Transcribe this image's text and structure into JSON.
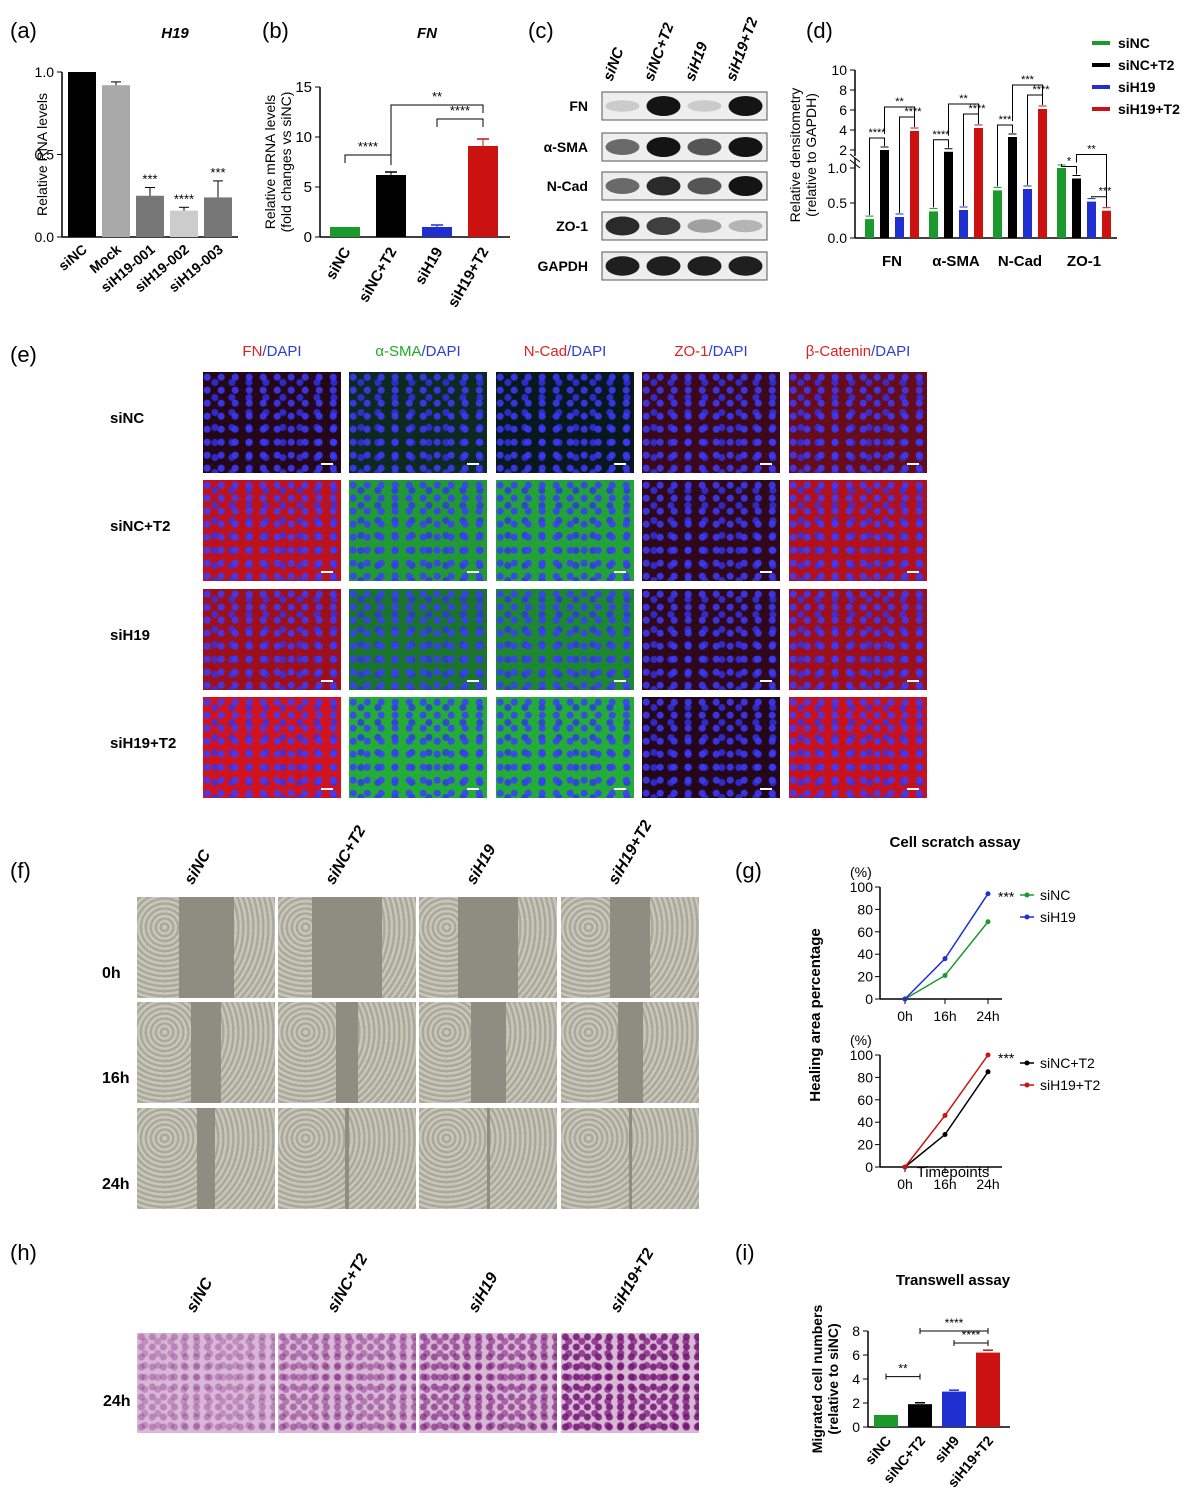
{
  "panel_letters": [
    "(a)",
    "(b)",
    "(c)",
    "(d)",
    "(e)",
    "(f)",
    "(g)",
    "(h)",
    "(i)"
  ],
  "colors": {
    "siNC": "#1a9a2a",
    "siNC_T2": "#000000",
    "siH19": "#1f2fd0",
    "siH19_T2": "#cc1111",
    "mock": "#a9a9a9",
    "grey": "#777777"
  },
  "chart_data": [
    {
      "id": "a",
      "type": "bar",
      "title": "H19",
      "xlabel": "",
      "ylabel": "Relative RNA levels",
      "ylim": [
        0,
        1.0
      ],
      "yticks": [
        "0.0",
        "0.5",
        "1.0"
      ],
      "categories": [
        "siNC",
        "Mock",
        "siH19-001",
        "siH19-002",
        "siH19-003"
      ],
      "values": [
        1.0,
        0.92,
        0.25,
        0.16,
        0.24
      ],
      "errors": [
        0,
        0.02,
        0.05,
        0.02,
        0.1
      ],
      "annotations": [
        "",
        "",
        "***",
        "****",
        "***"
      ]
    },
    {
      "id": "b",
      "type": "bar",
      "title": "FN",
      "xlabel": "",
      "ylabel": "Relative mRNA levels (fold changes vs siNC)",
      "ylabel_lines": [
        "Relative mRNA levels",
        "(fold changes vs siNC)"
      ],
      "ylim": [
        0,
        15
      ],
      "yticks": [
        "0",
        "5",
        "10",
        "15"
      ],
      "categories": [
        "siNC",
        "siNC+T2",
        "siH19",
        "siH19+T2"
      ],
      "values": [
        1.0,
        6.2,
        1.0,
        9.1
      ],
      "errors": [
        0,
        0.3,
        0.2,
        0.7
      ],
      "brackets": [
        {
          "from": 0,
          "to": 1,
          "label": "****"
        },
        {
          "from": 2,
          "to": 3,
          "label": "****"
        },
        {
          "from": 1,
          "to": 3,
          "label": "**"
        }
      ]
    },
    {
      "id": "c",
      "type": "table",
      "title": "",
      "columns": [
        "siNC",
        "siNC+T2",
        "siH19",
        "siH19+T2"
      ],
      "rows": [
        "FN",
        "α-SMA",
        "N-Cad",
        "ZO-1",
        "GAPDH"
      ],
      "band_intensity": [
        [
          0.15,
          1.0,
          0.15,
          1.0
        ],
        [
          0.6,
          1.0,
          0.7,
          1.0
        ],
        [
          0.6,
          0.9,
          0.7,
          1.0
        ],
        [
          0.9,
          0.8,
          0.35,
          0.25
        ],
        [
          0.95,
          0.95,
          0.95,
          0.95
        ]
      ]
    },
    {
      "id": "d",
      "type": "bar",
      "title": "",
      "xlabel": "",
      "ylabel": "Relative densitometry (relative to GAPDH)",
      "ylabel_lines": [
        "Relative densitometry",
        "(relative to GAPDH)"
      ],
      "ylim": [
        0,
        10
      ],
      "yticks_low": [
        "0.0",
        "0.5",
        "1.0"
      ],
      "yticks_high": [
        "2",
        "4",
        "6",
        "8",
        "10"
      ],
      "categories": [
        "FN",
        "α-SMA",
        "N-Cad",
        "ZO-1"
      ],
      "legend": "top-right",
      "series": [
        {
          "name": "siNC",
          "values": [
            0.27,
            0.38,
            0.68,
            1.0
          ]
        },
        {
          "name": "siNC+T2",
          "values": [
            2.0,
            1.8,
            3.3,
            0.85
          ]
        },
        {
          "name": "siH19",
          "values": [
            0.3,
            0.4,
            0.7,
            0.52
          ]
        },
        {
          "name": "siH19+T2",
          "values": [
            3.9,
            4.2,
            6.1,
            0.39
          ]
        }
      ],
      "annotations": [
        [
          "****",
          "**",
          "****"
        ],
        [
          "****",
          "**",
          "****"
        ],
        [
          "***",
          "***",
          "****"
        ],
        [
          "*",
          "**",
          "***"
        ]
      ]
    },
    {
      "id": "g",
      "type": "line",
      "title": "Cell scratch assay",
      "xlabel": "Timepoints",
      "ylabel": "Healing area percentage",
      "unit": "(%)",
      "x": [
        "0h",
        "16h",
        "24h"
      ],
      "ylim": [
        0,
        100
      ],
      "yticks": [
        "0",
        "20",
        "40",
        "60",
        "80",
        "100"
      ],
      "subplots": [
        {
          "legend": "top-right",
          "series": [
            {
              "name": "siNC",
              "values": [
                0,
                21,
                69
              ]
            },
            {
              "name": "siH19",
              "values": [
                0,
                36,
                94
              ]
            }
          ],
          "annotation": "***"
        },
        {
          "legend": "top-right",
          "series": [
            {
              "name": "siNC+T2",
              "values": [
                0,
                29,
                85
              ]
            },
            {
              "name": "siH19+T2",
              "values": [
                0,
                46,
                100
              ]
            }
          ],
          "annotation": "***"
        }
      ]
    },
    {
      "id": "i",
      "type": "bar",
      "title": "Transwell assay",
      "xlabel": "",
      "ylabel": "Migrated cell numbers (relative to siNC)",
      "ylabel_lines": [
        "Migrated cell numbers",
        "(relative to siNC)"
      ],
      "ylim": [
        0,
        8
      ],
      "yticks": [
        "0",
        "2",
        "4",
        "6",
        "8"
      ],
      "categories": [
        "siNC",
        "siNC+T2",
        "siH9",
        "siH19+T2"
      ],
      "values": [
        1.0,
        1.9,
        2.95,
        6.2
      ],
      "errors": [
        0,
        0.12,
        0.12,
        0.2
      ],
      "brackets": [
        {
          "from": 0,
          "to": 1,
          "label": "**"
        },
        {
          "from": 2,
          "to": 3,
          "label": "****"
        },
        {
          "from": 1,
          "to": 3,
          "label": "****"
        }
      ]
    }
  ],
  "panel_e": {
    "col_labels": [
      {
        "marker": "FN",
        "dapi": "/DAPI",
        "color": "#e02020"
      },
      {
        "marker": "α-SMA",
        "dapi": "/DAPI",
        "color": "#22aa22"
      },
      {
        "marker": "N-Cad",
        "dapi": "/DAPI",
        "color": "#e02020"
      },
      {
        "marker": "ZO-1",
        "dapi": "/DAPI",
        "color": "#e02020"
      },
      {
        "marker": "β-Catenin",
        "dapi": "/DAPI",
        "color": "#e02020"
      }
    ],
    "row_labels": [
      "siNC",
      "siNC+T2",
      "siH19",
      "siH19+T2"
    ]
  },
  "panel_f": {
    "col_labels": [
      "siNC",
      "siNC+T2",
      "siH19",
      "siH19+T2"
    ],
    "row_labels": [
      "0h",
      "16h",
      "24h"
    ]
  },
  "panel_h": {
    "col_labels": [
      "siNC",
      "siNC+T2",
      "siH19",
      "siH19+T2"
    ],
    "row_label": "24h"
  }
}
